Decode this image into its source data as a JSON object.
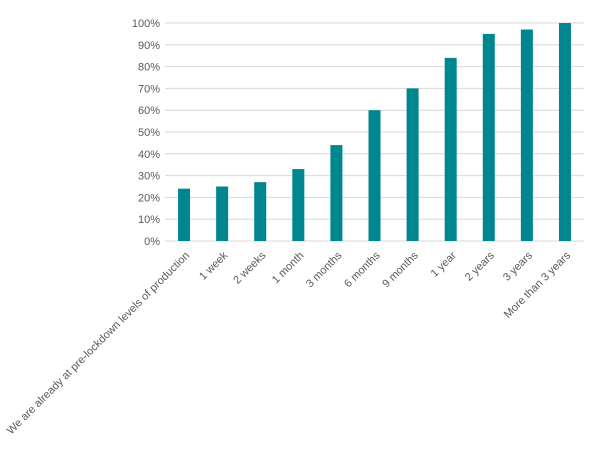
{
  "chart_data": {
    "type": "bar",
    "title": "",
    "xlabel": "",
    "ylabel": "",
    "categories": [
      "We are already at pre-lockdown levels of production",
      "1 week",
      "2 weeks",
      "1 month",
      "3 months",
      "6 months",
      "9 months",
      "1 year",
      "2 years",
      "3 years",
      "More than 3 years"
    ],
    "values": [
      24,
      25,
      27,
      33,
      44,
      60,
      70,
      84,
      95,
      97,
      100
    ],
    "ylim": [
      0,
      100
    ],
    "y_ticks": [
      0,
      10,
      20,
      30,
      40,
      50,
      60,
      70,
      80,
      90,
      100
    ],
    "y_tick_labels": [
      "0%",
      "10%",
      "20%",
      "30%",
      "40%",
      "50%",
      "60%",
      "70%",
      "80%",
      "90%",
      "100%"
    ],
    "grid": true,
    "legend": "none",
    "colors": {
      "bar": "#00868f",
      "grid": "#d9d9d9",
      "text": "#595959"
    }
  }
}
